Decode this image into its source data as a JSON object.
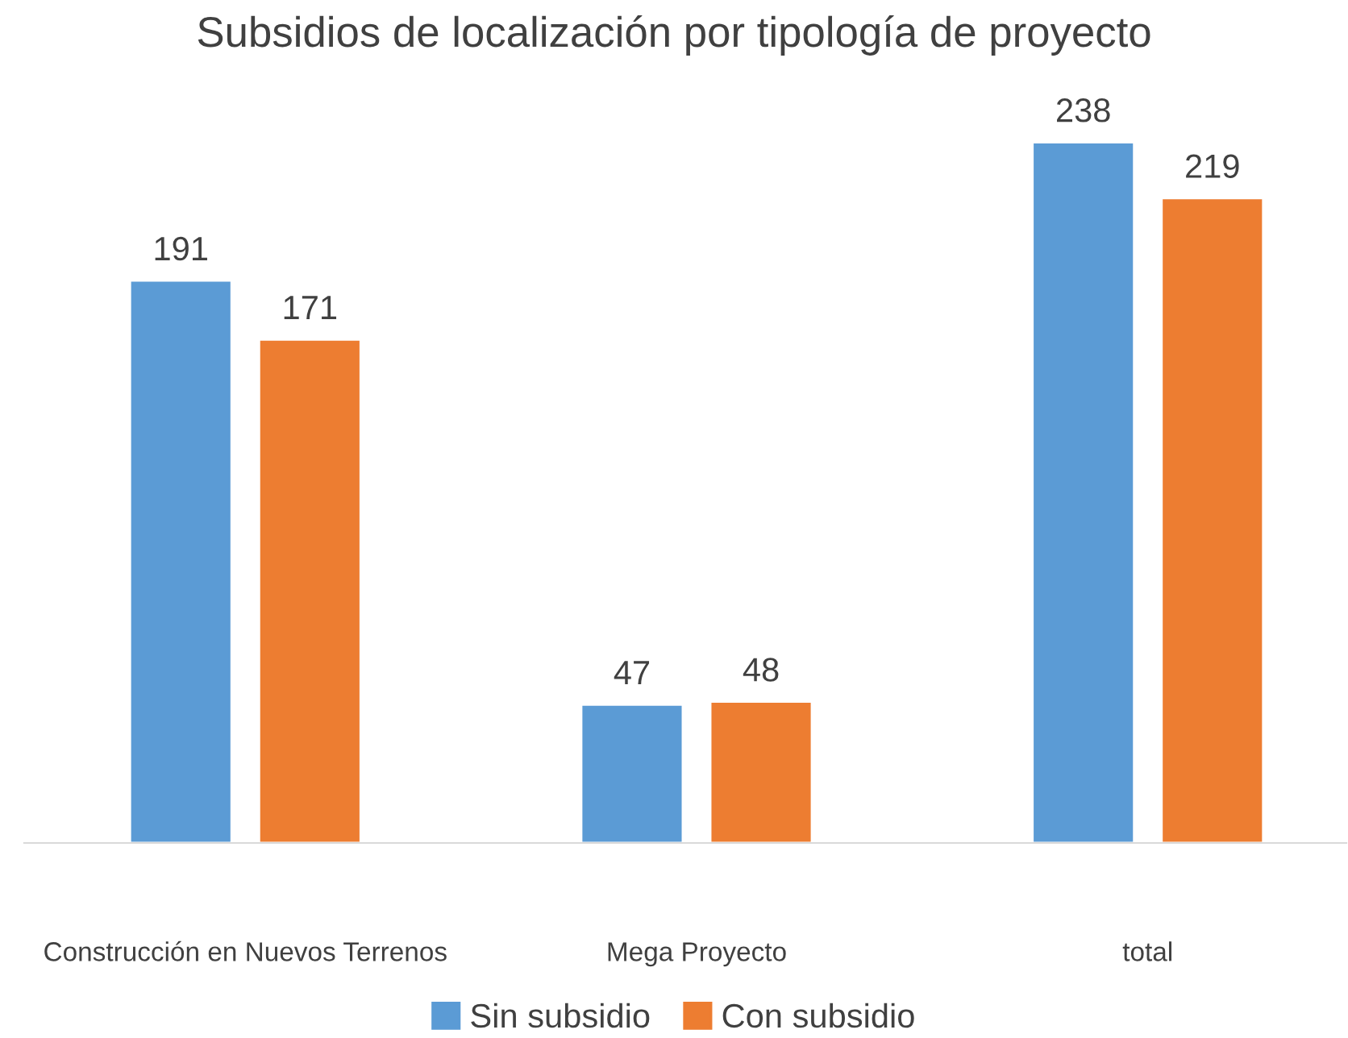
{
  "chart_data": {
    "type": "bar",
    "title": "Subsidios de localización por tipología de proyecto",
    "categories": [
      "Construcción en Nuevos Terrenos",
      "Mega Proyecto",
      "total"
    ],
    "series": [
      {
        "name": "Sin subsidio",
        "color": "#5b9bd5",
        "values": [
          191,
          47,
          238
        ]
      },
      {
        "name": "Con subsidio",
        "color": "#ed7d31",
        "values": [
          171,
          48,
          219
        ]
      }
    ],
    "data_labels": true,
    "grid": false,
    "legend": "bottom"
  }
}
